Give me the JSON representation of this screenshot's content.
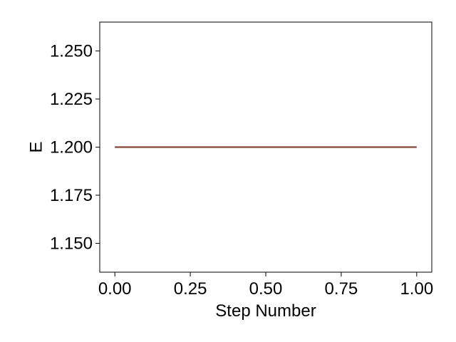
{
  "chart_data": {
    "type": "line",
    "title": "",
    "xlabel": "Step Number",
    "ylabel": "E",
    "xlim": [
      -0.05,
      1.05
    ],
    "ylim": [
      1.135,
      1.265
    ],
    "x_ticks": [
      0.0,
      0.25,
      0.5,
      0.75,
      1.0
    ],
    "x_tick_labels": [
      "0.00",
      "0.25",
      "0.50",
      "0.75",
      "1.00"
    ],
    "y_ticks": [
      1.15,
      1.175,
      1.2,
      1.225,
      1.25
    ],
    "y_tick_labels": [
      "1.150",
      "1.175",
      "1.200",
      "1.225",
      "1.250"
    ],
    "grid": false,
    "series": [
      {
        "x": [
          0.0,
          1.0
        ],
        "y": [
          1.2,
          1.2
        ],
        "color": "#8c564b"
      }
    ]
  }
}
